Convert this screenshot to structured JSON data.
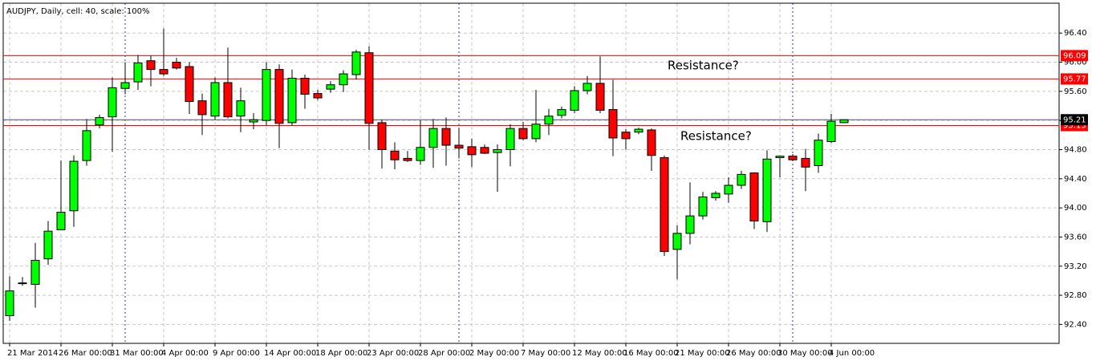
{
  "chart_data": {
    "type": "candlestick",
    "title": "AUDJPY, Daily, cell: 40, scale: 100%",
    "categories": [
      "21 Mar 2014",
      null,
      null,
      null,
      "26 Mar 00:00",
      null,
      null,
      null,
      "31 Mar 00:00",
      null,
      null,
      null,
      "4 Apr 00:00",
      null,
      null,
      null,
      "9 Apr 00:00",
      null,
      null,
      null,
      "14 Apr 00:00",
      null,
      null,
      null,
      "18 Apr 00:00",
      null,
      null,
      null,
      "23 Apr 00:00",
      null,
      null,
      null,
      "28 Apr 00:00",
      null,
      null,
      null,
      "2 May 00:00",
      null,
      null,
      null,
      "7 May 00:00",
      null,
      null,
      null,
      "12 May 00:00",
      null,
      null,
      null,
      "16 May 00:00",
      null,
      null,
      null,
      "21 May 00:00",
      null,
      null,
      null,
      "26 May 00:00",
      null,
      null,
      null,
      "30 May 00:00",
      null,
      null,
      null,
      "4 Jun 00:00",
      null
    ],
    "open": [
      92.52,
      92.96,
      92.95,
      93.3,
      93.7,
      93.96,
      94.65,
      95.14,
      95.25,
      95.64,
      95.73,
      96.02,
      95.9,
      96.0,
      95.94,
      95.47,
      95.26,
      95.72,
      95.26,
      95.18,
      95.2,
      95.9,
      95.17,
      95.78,
      95.57,
      95.63,
      95.69,
      95.83,
      96.13,
      95.17,
      94.78,
      94.68,
      94.65,
      94.83,
      95.09,
      94.86,
      94.84,
      94.83,
      94.76,
      94.8,
      95.09,
      94.95,
      95.15,
      95.27,
      95.34,
      95.61,
      95.71,
      95.35,
      95.04,
      95.04,
      95.07,
      94.69,
      93.43,
      93.65,
      93.89,
      94.14,
      94.19,
      94.31,
      94.48,
      93.81,
      94.69,
      94.71,
      94.68,
      94.58,
      94.91,
      95.17
    ],
    "high": [
      93.06,
      93.05,
      93.52,
      93.82,
      94.65,
      94.72,
      95.22,
      95.28,
      95.79,
      96.0,
      96.1,
      96.09,
      96.46,
      96.06,
      96.0,
      95.57,
      95.79,
      96.2,
      95.65,
      95.3,
      96.0,
      95.97,
      95.9,
      95.83,
      95.62,
      95.74,
      95.89,
      96.17,
      96.22,
      95.21,
      94.9,
      94.78,
      95.2,
      95.22,
      95.24,
      95.09,
      94.95,
      94.87,
      94.87,
      95.15,
      95.18,
      95.62,
      95.36,
      95.39,
      95.67,
      95.81,
      96.08,
      95.76,
      95.08,
      95.1,
      95.09,
      94.72,
      93.76,
      94.35,
      94.22,
      94.23,
      94.42,
      94.51,
      94.49,
      94.79,
      94.72,
      94.74,
      94.81,
      95.02,
      95.29,
      95.21
    ],
    "low": [
      92.45,
      92.93,
      92.63,
      93.22,
      93.7,
      93.74,
      94.58,
      95.09,
      94.77,
      95.56,
      95.62,
      95.67,
      95.81,
      95.9,
      95.29,
      95.0,
      95.21,
      95.23,
      95.04,
      95.08,
      95.13,
      94.82,
      95.13,
      95.36,
      95.48,
      95.58,
      95.59,
      95.76,
      94.8,
      94.54,
      94.53,
      94.63,
      94.59,
      94.55,
      94.58,
      94.68,
      94.56,
      94.74,
      94.22,
      94.57,
      94.93,
      94.9,
      95.0,
      95.23,
      95.3,
      95.56,
      95.3,
      94.71,
      94.8,
      95.01,
      94.51,
      93.34,
      93.02,
      93.5,
      93.84,
      94.1,
      94.07,
      94.26,
      93.71,
      93.67,
      94.42,
      94.64,
      94.23,
      94.48,
      94.89,
      95.17
    ],
    "close": [
      92.86,
      92.97,
      93.28,
      93.68,
      93.94,
      94.64,
      95.06,
      95.24,
      95.65,
      95.72,
      95.99,
      95.9,
      95.84,
      95.92,
      95.46,
      95.28,
      95.72,
      95.25,
      95.47,
      95.21,
      95.9,
      95.16,
      95.78,
      95.56,
      95.51,
      95.69,
      95.84,
      96.14,
      95.16,
      94.8,
      94.66,
      94.65,
      94.83,
      95.09,
      94.86,
      94.82,
      94.73,
      94.75,
      94.8,
      95.09,
      94.95,
      95.15,
      95.26,
      95.35,
      95.61,
      95.71,
      95.34,
      94.96,
      94.95,
      95.08,
      94.72,
      93.4,
      93.65,
      93.89,
      94.15,
      94.2,
      94.31,
      94.46,
      93.82,
      94.67,
      94.71,
      94.66,
      94.56,
      94.93,
      95.19,
      95.21
    ],
    "up_color": "#00ff00",
    "down_color": "#ff0000",
    "ylim": [
      92.14,
      96.81
    ],
    "yticks": [
      {
        "value": 92.4,
        "label": "92.40"
      },
      {
        "value": 92.8,
        "label": "92.80"
      },
      {
        "value": 93.2,
        "label": "93.20"
      },
      {
        "value": 93.6,
        "label": "93.60"
      },
      {
        "value": 94.0,
        "label": "94.00"
      },
      {
        "value": 94.4,
        "label": "94.40"
      },
      {
        "value": 94.8,
        "label": "94.80"
      },
      {
        "value": 95.2,
        "label": "95.20"
      },
      {
        "value": 95.6,
        "label": "95.60"
      },
      {
        "value": 96.0,
        "label": "96.00"
      },
      {
        "value": 96.4,
        "label": "96.40"
      }
    ],
    "grid": true,
    "hlines": [
      {
        "value": 96.09,
        "label": "96.09",
        "color": "#ff0000"
      },
      {
        "value": 95.77,
        "label": "95.77",
        "color": "#ff0000"
      },
      {
        "value": 95.13,
        "label": "95.13",
        "color": "#ff0000"
      },
      {
        "value": 95.21,
        "label": "95.21",
        "color": "#000000"
      }
    ],
    "annotations": [
      "Resistance?",
      "Resistance?"
    ]
  }
}
